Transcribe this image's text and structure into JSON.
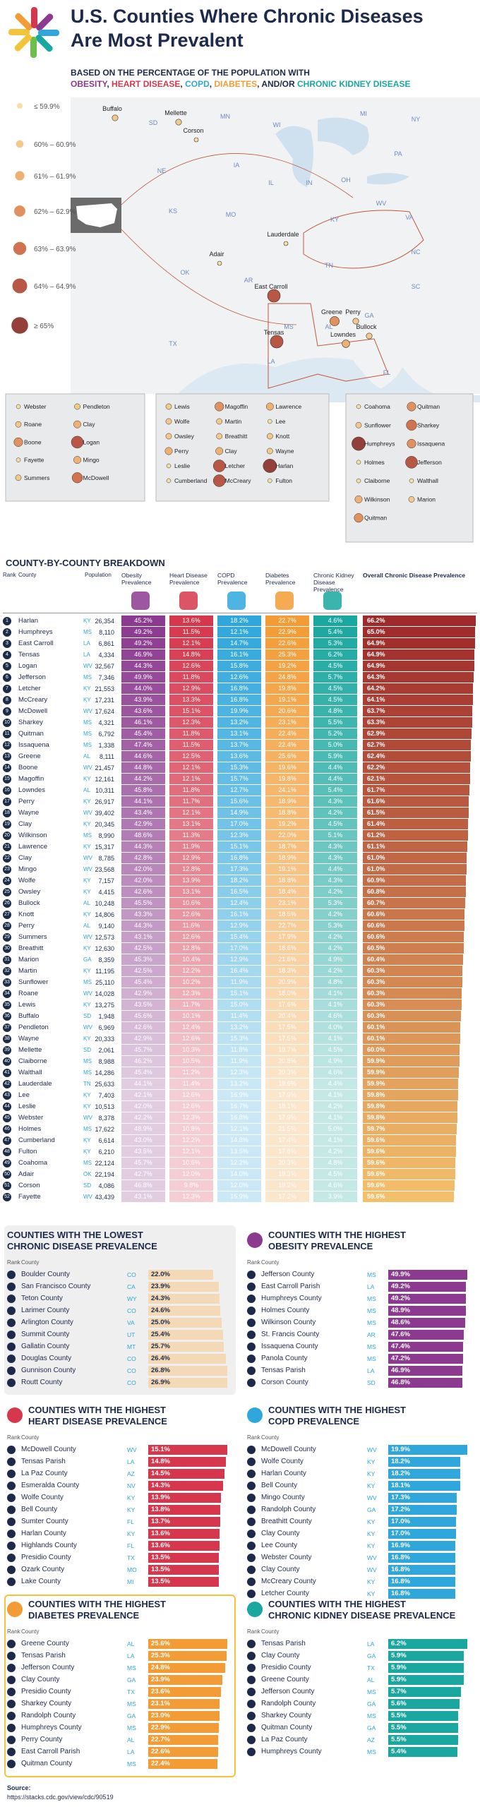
{
  "header": {
    "title_line1": "U.S. Counties Where Chronic Diseases",
    "title_line2": "Are Most Prevalent",
    "subtitle": "BASED ON THE PERCENTAGE OF THE POPULATION WITH",
    "subtitle_parts": [
      "OBESITY",
      ", ",
      "HEART DISEASE",
      ", ",
      "COPD",
      ", ",
      "DIABETES",
      ", AND/OR ",
      "CHRONIC KIDNEY DISEASE"
    ],
    "subtitle_colors": [
      "#8b3a8f",
      "#1e2a4a",
      "#d6374c",
      "#1e2a4a",
      "#2fa7dc",
      "#1e2a4a",
      "#f39c35",
      "#1e2a4a",
      "#1aa7a0"
    ]
  },
  "map": {
    "legend": [
      "≤ 59.9%",
      "60% – 60.9%",
      "61% – 61.9%",
      "62% – 62.9%",
      "63% – 63.9%",
      "64% – 64.9%",
      "≥ 65%"
    ],
    "legend_colors": [
      "#f7dfa8",
      "#f3c98a",
      "#eeb173",
      "#e0915e",
      "#cf7351",
      "#b65845",
      "#93403a"
    ],
    "states": [
      "SD",
      "MN",
      "WI",
      "MI",
      "NE",
      "IA",
      "IL",
      "IN",
      "OH",
      "PA",
      "NY",
      "KS",
      "MO",
      "KY",
      "WV",
      "VA",
      "OK",
      "AR",
      "TN",
      "NC",
      "SC",
      "GA",
      "AL",
      "MS",
      "LA",
      "TX",
      "FL"
    ],
    "counties": [
      "Buffalo",
      "Mellette",
      "Corson",
      "Adair",
      "Lauderdale",
      "East Carroll",
      "Tensas",
      "Greene",
      "Perry",
      "Bullock",
      "Lowndes"
    ],
    "county_levels": [
      1,
      1,
      0,
      0,
      0,
      5,
      5,
      3,
      1,
      1,
      2
    ],
    "insets": [
      {
        "labels": [
          "Webster",
          "Pendleton",
          "Roane",
          "Clay",
          "Boone",
          "Logan",
          "Fayette",
          "Mingo",
          "Summers",
          "McDowell"
        ],
        "levels": [
          0,
          1,
          1,
          2,
          3,
          5,
          0,
          2,
          1,
          4
        ]
      },
      {
        "labels": [
          "Lewis",
          "Magoffin",
          "Lawrence",
          "Wolfe",
          "Martin",
          "Lee",
          "Owsley",
          "Breathitt",
          "Knott",
          "Perry",
          "Clay",
          "Wayne",
          "Leslie",
          "Letcher",
          "Harlan",
          "Cumberland",
          "McCreary",
          "Fulton"
        ],
        "levels": [
          1,
          3,
          2,
          1,
          1,
          0,
          1,
          1,
          1,
          2,
          2,
          1,
          0,
          5,
          6,
          0,
          5,
          0
        ]
      },
      {
        "labels": [
          "Coahoma",
          "Quitman",
          "Sunflower",
          "Sharkey",
          "Humphreys",
          "Issaquena",
          "Holmes",
          "Jefferson",
          "Claiborne",
          "Walthall",
          "Wilkinson",
          "Marion",
          "Quitman"
        ],
        "levels": [
          0,
          3,
          1,
          4,
          6,
          3,
          0,
          5,
          0,
          0,
          2,
          1,
          3
        ]
      }
    ]
  },
  "table": {
    "title": "COUNTY-BY-COUNTY BREAKDOWN",
    "headers": [
      "Rank",
      "County",
      "Population",
      "Obesity Prevalence",
      "Heart Disease Prevalence",
      "COPD Prevalence",
      "Diabetes Prevalence",
      "Chronic Kidney Disease Prevalence",
      "Overall Chronic Disease Prevalence"
    ],
    "rows": [
      [
        "1",
        "Harlan",
        "KY",
        "26,354",
        "45.2%",
        "13.6%",
        "18.2%",
        "22.7%",
        "4.6%",
        "66.2%"
      ],
      [
        "2",
        "Humphreys",
        "MS",
        "8,110",
        "49.2%",
        "11.5%",
        "12.1%",
        "22.9%",
        "5.4%",
        "65.0%"
      ],
      [
        "3",
        "East Carroll",
        "LA",
        "6,861",
        "49.2%",
        "12.1%",
        "14.7%",
        "22.6%",
        "5.3%",
        "64.9%"
      ],
      [
        "4",
        "Tensas",
        "LA",
        "4,334",
        "46.9%",
        "14.8%",
        "16.1%",
        "25.3%",
        "6.2%",
        "64.9%"
      ],
      [
        "5",
        "Logan",
        "WV",
        "32,567",
        "44.3%",
        "12.6%",
        "15.8%",
        "19.2%",
        "4.5%",
        "64.9%"
      ],
      [
        "6",
        "Jefferson",
        "MS",
        "7,346",
        "49.9%",
        "11.8%",
        "12.6%",
        "24.8%",
        "5.7%",
        "64.3%"
      ],
      [
        "7",
        "Letcher",
        "KY",
        "21,553",
        "44.0%",
        "12.9%",
        "16.8%",
        "19.8%",
        "4.5%",
        "64.2%"
      ],
      [
        "8",
        "McCreary",
        "KY",
        "17,231",
        "43.9%",
        "13.3%",
        "16.8%",
        "19.1%",
        "4.5%",
        "64.1%"
      ],
      [
        "9",
        "McDowell",
        "WV",
        "17,624",
        "43.6%",
        "15.1%",
        "19.9%",
        "20.6%",
        "4.8%",
        "63.7%"
      ],
      [
        "10",
        "Sharkey",
        "MS",
        "4,321",
        "46.1%",
        "12.3%",
        "13.2%",
        "23.1%",
        "5.5%",
        "63.3%"
      ],
      [
        "11",
        "Quitman",
        "MS",
        "6,792",
        "45.4%",
        "11.8%",
        "13.1%",
        "22.4%",
        "5.2%",
        "62.9%"
      ],
      [
        "12",
        "Issaquena",
        "MS",
        "1,338",
        "47.4%",
        "11.5%",
        "13.7%",
        "22.4%",
        "5.0%",
        "62.7%"
      ],
      [
        "13",
        "Greene",
        "AL",
        "8,111",
        "44.6%",
        "12.5%",
        "13.6%",
        "25.6%",
        "5.9%",
        "62.4%"
      ],
      [
        "14",
        "Boone",
        "WV",
        "21,457",
        "44.8%",
        "12.1%",
        "15.3%",
        "19.6%",
        "4.4%",
        "62.2%"
      ],
      [
        "15",
        "Magoffin",
        "KY",
        "12,161",
        "44.2%",
        "12.1%",
        "15.7%",
        "19.8%",
        "4.4%",
        "62.1%"
      ],
      [
        "16",
        "Lowndes",
        "AL",
        "10,311",
        "45.8%",
        "11.8%",
        "12.7%",
        "24.1%",
        "5.4%",
        "61.7%"
      ],
      [
        "17",
        "Perry",
        "KY",
        "26,917",
        "44.1%",
        "11.7%",
        "15.6%",
        "18.9%",
        "4.3%",
        "61.6%"
      ],
      [
        "18",
        "Wayne",
        "WV",
        "39,402",
        "43.4%",
        "12.1%",
        "14.9%",
        "18.8%",
        "4.2%",
        "61.5%"
      ],
      [
        "19",
        "Clay",
        "KY",
        "20,345",
        "42.9%",
        "13.1%",
        "17.0%",
        "19.2%",
        "4.5%",
        "61.4%"
      ],
      [
        "20",
        "Wilkinson",
        "MS",
        "8,990",
        "48.6%",
        "11.3%",
        "12.3%",
        "22.0%",
        "5.1%",
        "61.2%"
      ],
      [
        "21",
        "Lawrence",
        "KY",
        "15,317",
        "44.3%",
        "11.9%",
        "15.1%",
        "18.7%",
        "4.3%",
        "61.1%"
      ],
      [
        "22",
        "Clay",
        "WV",
        "8,785",
        "42.8%",
        "12.9%",
        "16.8%",
        "18.9%",
        "4.3%",
        "61.0%"
      ],
      [
        "23",
        "Mingo",
        "WV",
        "23,568",
        "42.0%",
        "12.8%",
        "17.3%",
        "19.1%",
        "4.4%",
        "61.0%"
      ],
      [
        "24",
        "Wolfe",
        "KY",
        "7,157",
        "42.0%",
        "13.9%",
        "18.2%",
        "18.8%",
        "4.3%",
        "60.9%"
      ],
      [
        "25",
        "Owsley",
        "KY",
        "4,415",
        "42.6%",
        "13.1%",
        "16.5%",
        "18.4%",
        "4.2%",
        "60.8%"
      ],
      [
        "26",
        "Bullock",
        "AL",
        "10,248",
        "45.5%",
        "10.6%",
        "12.4%",
        "23.1%",
        "5.3%",
        "60.7%"
      ],
      [
        "27",
        "Knott",
        "KY",
        "14,806",
        "43.3%",
        "12.6%",
        "16.1%",
        "18.5%",
        "4.2%",
        "60.6%"
      ],
      [
        "28",
        "Perry",
        "AL",
        "9,140",
        "44.3%",
        "11.6%",
        "12.9%",
        "22.7%",
        "5.3%",
        "60.6%"
      ],
      [
        "29",
        "Summers",
        "WV",
        "12,573",
        "43.1%",
        "12.6%",
        "15.4%",
        "17.9%",
        "4.2%",
        "60.6%"
      ],
      [
        "30",
        "Breathitt",
        "KY",
        "12,630",
        "42.5%",
        "12.8%",
        "17.0%",
        "18.6%",
        "4.2%",
        "60.5%"
      ],
      [
        "31",
        "Marion",
        "GA",
        "8,359",
        "45.3%",
        "10.4%",
        "12.9%",
        "21.6%",
        "4.9%",
        "60.4%"
      ],
      [
        "32",
        "Martin",
        "KY",
        "11,195",
        "42.5%",
        "12.2%",
        "16.4%",
        "18.3%",
        "4.2%",
        "60.3%"
      ],
      [
        "33",
        "Sunflower",
        "MS",
        "25,110",
        "45.4%",
        "10.2%",
        "11.9%",
        "20.9%",
        "4.8%",
        "60.3%"
      ],
      [
        "34",
        "Roane",
        "WV",
        "14,028",
        "42.9%",
        "12.3%",
        "15.1%",
        "18.0%",
        "4.1%",
        "60.3%"
      ],
      [
        "35",
        "Lewis",
        "KY",
        "13,275",
        "43.5%",
        "11.7%",
        "15.0%",
        "17.6%",
        "4.1%",
        "60.3%"
      ],
      [
        "36",
        "Buffalo",
        "SD",
        "1,948",
        "45.6%",
        "10.1%",
        "11.4%",
        "20.4%",
        "4.6%",
        "60.3%"
      ],
      [
        "37",
        "Pendleton",
        "WV",
        "6,969",
        "42.6%",
        "12.4%",
        "13.2%",
        "17.5%",
        "4.0%",
        "60.1%"
      ],
      [
        "38",
        "Wayne",
        "KY",
        "20,333",
        "42.9%",
        "12.6%",
        "15.3%",
        "17.5%",
        "4.1%",
        "60.1%"
      ],
      [
        "39",
        "Mellette",
        "SD",
        "2,061",
        "45.7%",
        "10.3%",
        "11.8%",
        "19.7%",
        "4.5%",
        "60.0%"
      ],
      [
        "40",
        "Claiborne",
        "MS",
        "8,988",
        "46.2%",
        "10.5%",
        "11.9%",
        "20.8%",
        "4.9%",
        "59.9%"
      ],
      [
        "41",
        "Walthall",
        "MS",
        "14,286",
        "45.4%",
        "11.2%",
        "12.3%",
        "20.3%",
        "4.6%",
        "59.9%"
      ],
      [
        "42",
        "Lauderdale",
        "TN",
        "25,633",
        "44.1%",
        "11.4%",
        "13.2%",
        "19.6%",
        "4.4%",
        "59.9%"
      ],
      [
        "43",
        "Lee",
        "KY",
        "7,403",
        "42.1%",
        "12.6%",
        "16.9%",
        "17.9%",
        "4.1%",
        "59.8%"
      ],
      [
        "44",
        "Leslie",
        "KY",
        "10,513",
        "42.0%",
        "12.6%",
        "16.7%",
        "18.1%",
        "4.2%",
        "59.8%"
      ],
      [
        "45",
        "Webster",
        "WV",
        "8,378",
        "42.2%",
        "12.3%",
        "16.8%",
        "17.9%",
        "4.1%",
        "59.8%"
      ],
      [
        "46",
        "Holmes",
        "MS",
        "17,622",
        "48.9%",
        "10.8%",
        "12.1%",
        "21.5%",
        "5.0%",
        "59.7%"
      ],
      [
        "47",
        "Cumberland",
        "KY",
        "6,614",
        "43.0%",
        "12.2%",
        "14.8%",
        "17.4%",
        "4.1%",
        "59.6%"
      ],
      [
        "48",
        "Fulton",
        "KY",
        "6,210",
        "43.5%",
        "12.1%",
        "13.5%",
        "17.8%",
        "4.2%",
        "59.6%"
      ],
      [
        "49",
        "Coahoma",
        "MS",
        "22,124",
        "45.7%",
        "10.6%",
        "12.2%",
        "20.3%",
        "4.8%",
        "59.6%"
      ],
      [
        "50",
        "Adair",
        "OK",
        "22,194",
        "42.7%",
        "12.0%",
        "14.0%",
        "19.3%",
        "4.5%",
        "59.6%"
      ],
      [
        "51",
        "Corson",
        "SD",
        "4,086",
        "46.8%",
        "9.8%",
        "12.0%",
        "19.2%",
        "4.6%",
        "59.6%"
      ],
      [
        "52",
        "Fayette",
        "WV",
        "43,439",
        "43.1%",
        "12.3%",
        "15.9%",
        "17.2%",
        "3.9%",
        "59.6%"
      ]
    ]
  },
  "panels": [
    {
      "title_line1": "COUNTIES WITH THE LOWEST",
      "title_line2": "CHRONIC DISEASE PREVALENCE",
      "rank_header": "Rank",
      "county_header": "County",
      "color": "#f3d9b5",
      "counties": [
        "Boulder County",
        "San Francisco County",
        "Teton County",
        "Larimer County",
        "Arlington County",
        "Summit County",
        "Gallatin County",
        "Douglas County",
        "Gunnison County",
        "Routt County"
      ],
      "states": [
        "CO",
        "CA",
        "WY",
        "CO",
        "VA",
        "UT",
        "MT",
        "CO",
        "CO",
        "CO"
      ],
      "values": [
        22.0,
        23.9,
        24.3,
        24.6,
        25.0,
        25.4,
        25.7,
        26.4,
        26.8,
        26.9
      ],
      "value_labels": [
        "22.0%",
        "23.9%",
        "24.3%",
        "24.6%",
        "25.0%",
        "25.4%",
        "25.7%",
        "26.4%",
        "26.8%",
        "26.9%"
      ]
    },
    {
      "title_line1": "COUNTIES WITH THE HIGHEST",
      "title_line2": "OBESITY PREVALENCE",
      "rank_header": "Rank",
      "county_header": "County",
      "color": "#8b3a8f",
      "counties": [
        "Jefferson County",
        "East Carroll Parish",
        "Humphreys County",
        "Holmes County",
        "Wilkinson County",
        "St. Francis County",
        "Issaquena County",
        "Panola County",
        "Tensas Parish",
        "Corson County"
      ],
      "states": [
        "MS",
        "LA",
        "MS",
        "MS",
        "MS",
        "AR",
        "MS",
        "MS",
        "LA",
        "SD"
      ],
      "values": [
        49.9,
        49.2,
        49.2,
        48.9,
        48.6,
        47.6,
        47.4,
        47.2,
        46.9,
        46.8
      ],
      "value_labels": [
        "49.9%",
        "49.2%",
        "49.2%",
        "48.9%",
        "48.6%",
        "47.6%",
        "47.4%",
        "47.2%",
        "46.9%",
        "46.8%"
      ]
    },
    {
      "title_line1": "COUNTIES WITH THE HIGHEST",
      "title_line2": "HEART DISEASE PREVALENCE",
      "rank_header": "Rank",
      "county_header": "County",
      "color": "#d6374c",
      "counties": [
        "McDowell County",
        "Tensas Parish",
        "La Paz County",
        "Esmeralda County",
        "Wolfe County",
        "Bell County",
        "Sumter County",
        "Harlan County",
        "Highlands County",
        "Presidio County",
        "Ozark County",
        "Lake County"
      ],
      "states": [
        "WV",
        "LA",
        "AZ",
        "NV",
        "KY",
        "KY",
        "FL",
        "KY",
        "FL",
        "TX",
        "MO",
        "MI"
      ],
      "values": [
        15.1,
        14.8,
        14.5,
        14.3,
        13.9,
        13.8,
        13.7,
        13.6,
        13.6,
        13.5,
        13.5,
        13.5
      ],
      "value_labels": [
        "15.1%",
        "14.8%",
        "14.5%",
        "14.3%",
        "13.9%",
        "13.8%",
        "13.7%",
        "13.6%",
        "13.6%",
        "13.5%",
        "13.5%",
        "13.5%"
      ]
    },
    {
      "title_line1": "COUNTIES WITH THE HIGHEST",
      "title_line2": "COPD PREVALENCE",
      "rank_header": "Rank",
      "county_header": "County",
      "color": "#2fa7dc",
      "counties": [
        "McDowell County",
        "Wolfe County",
        "Harlan County",
        "Bell County",
        "Mingo County",
        "Randolph County",
        "Breathitt County",
        "Clay County",
        "Lee County",
        "Webster County",
        "Clay County",
        "McCreary County",
        "Letcher County"
      ],
      "states": [
        "WV",
        "KY",
        "KY",
        "KY",
        "WV",
        "GA",
        "KY",
        "KY",
        "KY",
        "WV",
        "WV",
        "KY",
        "KY"
      ],
      "values": [
        19.9,
        18.2,
        18.2,
        18.1,
        17.3,
        17.2,
        17.0,
        17.0,
        16.9,
        16.8,
        16.8,
        16.8,
        16.8
      ],
      "value_labels": [
        "19.9%",
        "18.2%",
        "18.2%",
        "18.1%",
        "17.3%",
        "17.2%",
        "17.0%",
        "17.0%",
        "16.9%",
        "16.8%",
        "16.8%",
        "16.8%",
        "16.8%"
      ]
    },
    {
      "title_line1": "COUNTIES WITH THE HIGHEST",
      "title_line2": "DIABETES PREVALENCE",
      "rank_header": "Rank",
      "county_header": "County",
      "color": "#f39c35",
      "counties": [
        "Greene County",
        "Tensas Parish",
        "Jefferson County",
        "Clay County",
        "Presidio County",
        "Sharkey County",
        "Randolph County",
        "Humphreys County",
        "Perry County",
        "East Carroll Parish",
        "Quitman County"
      ],
      "states": [
        "AL",
        "LA",
        "MS",
        "GA",
        "TX",
        "MS",
        "GA",
        "MS",
        "AL",
        "LA",
        "MS"
      ],
      "values": [
        25.6,
        25.3,
        24.8,
        23.9,
        23.6,
        23.1,
        23.0,
        22.9,
        22.7,
        22.6,
        22.4
      ],
      "value_labels": [
        "25.6%",
        "25.3%",
        "24.8%",
        "23.9%",
        "23.6%",
        "23.1%",
        "23.0%",
        "22.9%",
        "22.7%",
        "22.6%",
        "22.4%"
      ]
    },
    {
      "title_line1": "COUNTIES WITH THE HIGHEST",
      "title_line2": "CHRONIC KIDNEY DISEASE PREVALENCE",
      "rank_header": "Rank",
      "county_header": "County",
      "color": "#1aa7a0",
      "counties": [
        "Tensas Parish",
        "Clay County",
        "Presidio County",
        "Greene County",
        "Jefferson County",
        "Randolph County",
        "Sharkey County",
        "Quitman County",
        "La Paz County",
        "Humphreys County"
      ],
      "states": [
        "LA",
        "GA",
        "TX",
        "AL",
        "MS",
        "GA",
        "MS",
        "GA",
        "AZ",
        "MS"
      ],
      "values": [
        6.2,
        5.9,
        5.9,
        5.9,
        5.7,
        5.6,
        5.5,
        5.5,
        5.5,
        5.4
      ],
      "value_labels": [
        "6.2%",
        "5.9%",
        "5.9%",
        "5.9%",
        "5.7%",
        "5.6%",
        "5.5%",
        "5.5%",
        "5.5%",
        "5.4%"
      ]
    }
  ],
  "source": {
    "label": "Source:",
    "url": "https://stacks.cdc.gov/view/cdc/90519"
  }
}
